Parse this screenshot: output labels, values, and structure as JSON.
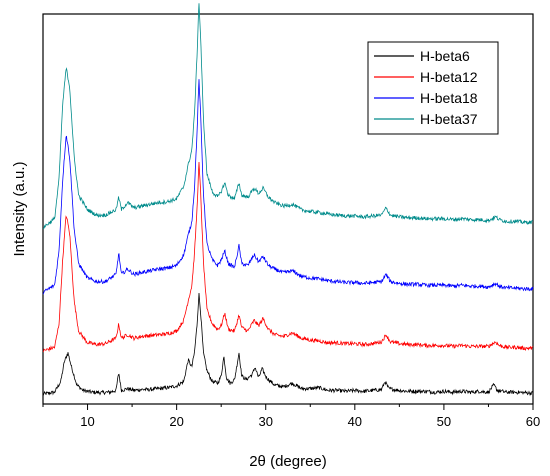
{
  "chart_data": {
    "type": "line",
    "title": "",
    "xlabel": "2θ (degree)",
    "ylabel": "Intensity (a.u.)",
    "xlim": [
      5,
      60
    ],
    "xticks": [
      10,
      20,
      30,
      40,
      50,
      60
    ],
    "y_tick_labels": "none",
    "legend_position": "top-right",
    "grid": false,
    "series": [
      {
        "name": "H-beta6",
        "color": "#000000",
        "baseline": 0,
        "points": [
          [
            5,
            0
          ],
          [
            6.3,
            2
          ],
          [
            7,
            14
          ],
          [
            7.4,
            36
          ],
          [
            7.8,
            46
          ],
          [
            8.2,
            30
          ],
          [
            8.8,
            10
          ],
          [
            9.5,
            4
          ],
          [
            10.5,
            2
          ],
          [
            11.5,
            1.5
          ],
          [
            12.5,
            2
          ],
          [
            13.2,
            4
          ],
          [
            13.5,
            24
          ],
          [
            13.8,
            4
          ],
          [
            14.5,
            6
          ],
          [
            15.2,
            4
          ],
          [
            16,
            5
          ],
          [
            17,
            5
          ],
          [
            18,
            6
          ],
          [
            19,
            7
          ],
          [
            20,
            9
          ],
          [
            20.8,
            14
          ],
          [
            21.3,
            38
          ],
          [
            21.7,
            30
          ],
          [
            22.0,
            46
          ],
          [
            22.3,
            78
          ],
          [
            22.5,
            112
          ],
          [
            22.7,
            90
          ],
          [
            23.0,
            46
          ],
          [
            23.4,
            26
          ],
          [
            24,
            14
          ],
          [
            24.6,
            12
          ],
          [
            25,
            20
          ],
          [
            25.3,
            42
          ],
          [
            25.6,
            18
          ],
          [
            26,
            12
          ],
          [
            26.5,
            16
          ],
          [
            27,
            46
          ],
          [
            27.3,
            20
          ],
          [
            27.8,
            16
          ],
          [
            28.5,
            22
          ],
          [
            28.8,
            30
          ],
          [
            29.2,
            18
          ],
          [
            29.6,
            28
          ],
          [
            30.1,
            18
          ],
          [
            31,
            10
          ],
          [
            32,
            8
          ],
          [
            33,
            12
          ],
          [
            34,
            6
          ],
          [
            35,
            6
          ],
          [
            36,
            7
          ],
          [
            37,
            4
          ],
          [
            38,
            4
          ],
          [
            39,
            3
          ],
          [
            40,
            4
          ],
          [
            41,
            3
          ],
          [
            42,
            4
          ],
          [
            43,
            5
          ],
          [
            43.4,
            14
          ],
          [
            43.8,
            6
          ],
          [
            45,
            4
          ],
          [
            46,
            3
          ],
          [
            47,
            3
          ],
          [
            48,
            3
          ],
          [
            49,
            2
          ],
          [
            50,
            3
          ],
          [
            51,
            2
          ],
          [
            52,
            3
          ],
          [
            53,
            2
          ],
          [
            54,
            3
          ],
          [
            55,
            2
          ],
          [
            55.6,
            10
          ],
          [
            56,
            4
          ],
          [
            57,
            2
          ],
          [
            58,
            2
          ],
          [
            59,
            1.5
          ],
          [
            60,
            1
          ]
        ]
      },
      {
        "name": "H-beta12",
        "color": "#ff0000",
        "baseline": 48,
        "points": [
          [
            5,
            0
          ],
          [
            6.3,
            4
          ],
          [
            6.8,
            30
          ],
          [
            7.2,
            100
          ],
          [
            7.6,
            152
          ],
          [
            8.0,
            130
          ],
          [
            8.5,
            55
          ],
          [
            9.0,
            22
          ],
          [
            10,
            9
          ],
          [
            11,
            7
          ],
          [
            12,
            8
          ],
          [
            13.2,
            14
          ],
          [
            13.5,
            30
          ],
          [
            13.8,
            14
          ],
          [
            14.5,
            18
          ],
          [
            15.2,
            14
          ],
          [
            16,
            16
          ],
          [
            17,
            17
          ],
          [
            18,
            18
          ],
          [
            19,
            19
          ],
          [
            20,
            22
          ],
          [
            20.8,
            34
          ],
          [
            21.3,
            56
          ],
          [
            21.7,
            72
          ],
          [
            22.0,
            108
          ],
          [
            22.3,
            160
          ],
          [
            22.5,
            210
          ],
          [
            22.7,
            175
          ],
          [
            23.0,
            100
          ],
          [
            23.4,
            46
          ],
          [
            24,
            30
          ],
          [
            24.6,
            24
          ],
          [
            25,
            28
          ],
          [
            25.4,
            42
          ],
          [
            25.8,
            24
          ],
          [
            26.5,
            22
          ],
          [
            27,
            40
          ],
          [
            27.3,
            26
          ],
          [
            28,
            22
          ],
          [
            28.7,
            34
          ],
          [
            29.2,
            28
          ],
          [
            29.7,
            36
          ],
          [
            30.3,
            24
          ],
          [
            31,
            18
          ],
          [
            32,
            16
          ],
          [
            33,
            20
          ],
          [
            34,
            14
          ],
          [
            35,
            12
          ],
          [
            36,
            11
          ],
          [
            37,
            9
          ],
          [
            38,
            9
          ],
          [
            39,
            8
          ],
          [
            40,
            8
          ],
          [
            41,
            7
          ],
          [
            42,
            8
          ],
          [
            43,
            10
          ],
          [
            43.5,
            18
          ],
          [
            44,
            10
          ],
          [
            45,
            8
          ],
          [
            46,
            7
          ],
          [
            47,
            7
          ],
          [
            48,
            6
          ],
          [
            49,
            6
          ],
          [
            50,
            6
          ],
          [
            51,
            5
          ],
          [
            52,
            6
          ],
          [
            53,
            5
          ],
          [
            54,
            5
          ],
          [
            55,
            5
          ],
          [
            55.8,
            10
          ],
          [
            56.2,
            6
          ],
          [
            57,
            4
          ],
          [
            58,
            4
          ],
          [
            59,
            3
          ],
          [
            60,
            3
          ]
        ]
      },
      {
        "name": "H-beta18",
        "color": "#0000ff",
        "baseline": 113,
        "points": [
          [
            5,
            0
          ],
          [
            6.3,
            8
          ],
          [
            6.8,
            46
          ],
          [
            7.2,
            124
          ],
          [
            7.6,
            176
          ],
          [
            8.0,
            150
          ],
          [
            8.5,
            70
          ],
          [
            9.0,
            32
          ],
          [
            10,
            16
          ],
          [
            11,
            12
          ],
          [
            12,
            12
          ],
          [
            13.2,
            20
          ],
          [
            13.5,
            44
          ],
          [
            13.8,
            20
          ],
          [
            14.5,
            26
          ],
          [
            15.2,
            20
          ],
          [
            16,
            22
          ],
          [
            17,
            24
          ],
          [
            18,
            26
          ],
          [
            19,
            27
          ],
          [
            20,
            30
          ],
          [
            20.8,
            42
          ],
          [
            21.3,
            64
          ],
          [
            21.7,
            78
          ],
          [
            22.0,
            116
          ],
          [
            22.3,
            180
          ],
          [
            22.5,
            238
          ],
          [
            22.7,
            196
          ],
          [
            23.0,
            112
          ],
          [
            23.4,
            54
          ],
          [
            24,
            36
          ],
          [
            24.6,
            30
          ],
          [
            25,
            36
          ],
          [
            25.4,
            46
          ],
          [
            25.8,
            32
          ],
          [
            26.5,
            28
          ],
          [
            27,
            52
          ],
          [
            27.3,
            32
          ],
          [
            28,
            30
          ],
          [
            28.7,
            42
          ],
          [
            29.2,
            34
          ],
          [
            29.7,
            40
          ],
          [
            30.3,
            30
          ],
          [
            31,
            26
          ],
          [
            32,
            22
          ],
          [
            33,
            24
          ],
          [
            34,
            18
          ],
          [
            35,
            16
          ],
          [
            36,
            15
          ],
          [
            37,
            13
          ],
          [
            38,
            12
          ],
          [
            39,
            11
          ],
          [
            40,
            11
          ],
          [
            41,
            10
          ],
          [
            42,
            11
          ],
          [
            43,
            12
          ],
          [
            43.5,
            20
          ],
          [
            44,
            12
          ],
          [
            45,
            10
          ],
          [
            46,
            9
          ],
          [
            47,
            9
          ],
          [
            48,
            8
          ],
          [
            49,
            8
          ],
          [
            50,
            8
          ],
          [
            51,
            7
          ],
          [
            52,
            8
          ],
          [
            53,
            7
          ],
          [
            54,
            7
          ],
          [
            55,
            6
          ],
          [
            55.8,
            10
          ],
          [
            56.2,
            7
          ],
          [
            57,
            5
          ],
          [
            58,
            5
          ],
          [
            59,
            4
          ],
          [
            60,
            4
          ]
        ]
      },
      {
        "name": "H-beta37",
        "color": "#008b8b",
        "baseline": 185,
        "points": [
          [
            5,
            0
          ],
          [
            6.3,
            10
          ],
          [
            6.8,
            54
          ],
          [
            7.2,
            136
          ],
          [
            7.6,
            178
          ],
          [
            8.0,
            156
          ],
          [
            8.5,
            78
          ],
          [
            9.0,
            36
          ],
          [
            10,
            20
          ],
          [
            11,
            14
          ],
          [
            12,
            14
          ],
          [
            13.2,
            20
          ],
          [
            13.5,
            34
          ],
          [
            13.8,
            20
          ],
          [
            14.5,
            28
          ],
          [
            15.2,
            22
          ],
          [
            16,
            24
          ],
          [
            17,
            26
          ],
          [
            18,
            28
          ],
          [
            19,
            29
          ],
          [
            20,
            32
          ],
          [
            20.8,
            46
          ],
          [
            21.3,
            70
          ],
          [
            21.7,
            86
          ],
          [
            22.0,
            126
          ],
          [
            22.3,
            194
          ],
          [
            22.5,
            252
          ],
          [
            22.7,
            210
          ],
          [
            23.0,
            122
          ],
          [
            23.4,
            60
          ],
          [
            24,
            40
          ],
          [
            24.6,
            34
          ],
          [
            25,
            40
          ],
          [
            25.4,
            50
          ],
          [
            25.8,
            36
          ],
          [
            26.5,
            32
          ],
          [
            27,
            50
          ],
          [
            27.3,
            36
          ],
          [
            28,
            34
          ],
          [
            28.7,
            44
          ],
          [
            29.2,
            38
          ],
          [
            29.7,
            44
          ],
          [
            30.3,
            34
          ],
          [
            31,
            28
          ],
          [
            32,
            24
          ],
          [
            33,
            26
          ],
          [
            34,
            20
          ],
          [
            35,
            18
          ],
          [
            36,
            17
          ],
          [
            37,
            15
          ],
          [
            38,
            14
          ],
          [
            39,
            13
          ],
          [
            40,
            13
          ],
          [
            41,
            12
          ],
          [
            42,
            13
          ],
          [
            43,
            14
          ],
          [
            43.5,
            22
          ],
          [
            44,
            14
          ],
          [
            45,
            12
          ],
          [
            46,
            11
          ],
          [
            47,
            11
          ],
          [
            48,
            10
          ],
          [
            49,
            10
          ],
          [
            50,
            10
          ],
          [
            51,
            9
          ],
          [
            52,
            10
          ],
          [
            53,
            9
          ],
          [
            54,
            9
          ],
          [
            55,
            8
          ],
          [
            55.8,
            12
          ],
          [
            56.2,
            9
          ],
          [
            57,
            7
          ],
          [
            58,
            7
          ],
          [
            59,
            6
          ],
          [
            60,
            6
          ]
        ]
      }
    ]
  }
}
